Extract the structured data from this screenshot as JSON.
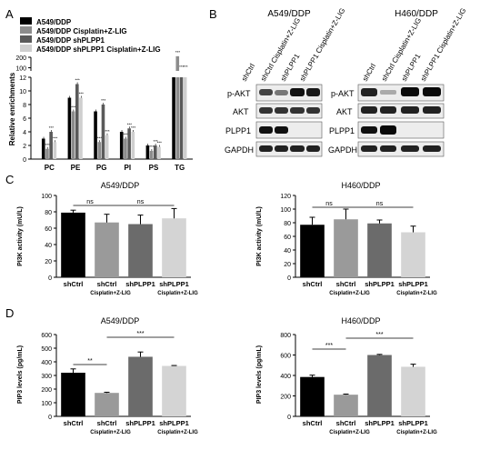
{
  "panels": {
    "A": "A",
    "B": "B",
    "C": "C",
    "D": "D"
  },
  "panelA": {
    "legend": [
      "A549/DDP",
      "A549/DDP Cisplatin+Z-LIG",
      "A549/DDP shPLPP1",
      "A549/DDP shPLPP1 Cisplatin+Z-LIG"
    ],
    "colors": [
      "#000000",
      "#8c8c8c",
      "#5a5a5a",
      "#cfcfcf"
    ],
    "ylabel": "Relative enrichments",
    "yticks_low": [
      "0",
      "2",
      "4",
      "6",
      "8",
      "10",
      "12"
    ],
    "yticks_high": [
      "100",
      "200"
    ],
    "categories": [
      "PC",
      "PE",
      "PG",
      "PI",
      "PS",
      "TG"
    ],
    "sig": "***"
  },
  "panelB": {
    "a549": {
      "title": "A549/DDP",
      "lanes": [
        "shCtrl",
        "shCtrl Cisplatin+Z-LIG",
        "shPLPP1",
        "shPLPP1 Cisplatin+Z-LIG"
      ],
      "rows": [
        "p-AKT",
        "AKT",
        "PLPP1",
        "GAPDH"
      ]
    },
    "h460": {
      "title": "H460/DDP",
      "lanes": [
        "shCtrl",
        "shCtrl Cisplatin+Z-LIG",
        "shPLPP1",
        "shPLPP1 Cisplatin+Z-LIG"
      ],
      "rows": [
        "p-AKT",
        "AKT",
        "PLPP1",
        "GAPDH"
      ]
    }
  },
  "chart_data": [
    {
      "type": "bar",
      "panel": "A",
      "categories": [
        "PC",
        "PE",
        "PG",
        "PI",
        "PS",
        "TG"
      ],
      "ylabel": "Relative enrichments",
      "broken_axis": {
        "lower": [
          0,
          12
        ],
        "upper": [
          70,
          200
        ]
      },
      "series": [
        {
          "name": "A549/DDP",
          "values": [
            3.0,
            9.0,
            7.0,
            4.0,
            2.0,
            70
          ]
        },
        {
          "name": "A549/DDP Cisplatin+Z-LIG",
          "values": [
            1.5,
            7.0,
            2.5,
            3.0,
            1.2,
            210
          ]
        },
        {
          "name": "A549/DDP shPLPP1",
          "values": [
            4.0,
            11.0,
            8.0,
            4.5,
            2.0,
            70
          ]
        },
        {
          "name": "A549/DDP shPLPP1 Cisplatin+Z-LIG",
          "values": [
            2.5,
            9.0,
            3.5,
            4.0,
            1.8,
            70
          ]
        }
      ]
    },
    {
      "type": "bar",
      "panel": "C-left",
      "title": "A549/DDP",
      "ylabel": "PI3K activity (mU/L)",
      "ylim": [
        0,
        100
      ],
      "yticks": [
        "0",
        "20",
        "40",
        "60",
        "80",
        "100"
      ],
      "categories": [
        "shCtrl",
        "shCtrl",
        "shPLPP1",
        "shPLPP1"
      ],
      "sublabels": [
        "",
        "Cisplatin+Z-LIG",
        "",
        "Cisplatin+Z-LIG"
      ],
      "values": [
        79,
        67,
        65,
        72
      ],
      "errors": [
        3,
        10,
        11,
        12
      ],
      "colors": [
        "#000000",
        "#9a9a9a",
        "#6b6b6b",
        "#d4d4d4"
      ],
      "annotations": [
        "ns",
        "ns"
      ]
    },
    {
      "type": "bar",
      "panel": "C-right",
      "title": "H460/DDP",
      "ylabel": "PI3K activity (mU/L)",
      "ylim": [
        0,
        120
      ],
      "yticks": [
        "0",
        "20",
        "40",
        "60",
        "80",
        "100",
        "120"
      ],
      "categories": [
        "shCtrl",
        "shCtrl",
        "shPLPP1",
        "shPLPP1"
      ],
      "sublabels": [
        "",
        "Cisplatin+Z-LIG",
        "",
        "Cisplatin+Z-LIG"
      ],
      "values": [
        77,
        85,
        79,
        66
      ],
      "errors": [
        11,
        15,
        5,
        9
      ],
      "colors": [
        "#000000",
        "#9a9a9a",
        "#6b6b6b",
        "#d4d4d4"
      ],
      "annotations": [
        "ns",
        "ns"
      ]
    },
    {
      "type": "bar",
      "panel": "D-left",
      "title": "A549/DDP",
      "ylabel": "PIP3 levels (pg/mL)",
      "ylim": [
        0,
        600
      ],
      "yticks": [
        "0",
        "100",
        "200",
        "300",
        "400",
        "500",
        "600"
      ],
      "categories": [
        "shCtrl",
        "shCtrl",
        "shPLPP1",
        "shPLPP1"
      ],
      "sublabels": [
        "",
        "Cisplatin+Z-LIG",
        "",
        "Cisplatin+Z-LIG"
      ],
      "values": [
        320,
        172,
        437,
        370
      ],
      "errors": [
        28,
        5,
        35,
        3
      ],
      "colors": [
        "#000000",
        "#9a9a9a",
        "#6b6b6b",
        "#d4d4d4"
      ],
      "annotations": [
        "**",
        "***"
      ]
    },
    {
      "type": "bar",
      "panel": "D-right",
      "title": "H460/DDP",
      "ylabel": "PIP3 levels (pg/mL)",
      "ylim": [
        0,
        800
      ],
      "yticks": [
        "0",
        "200",
        "400",
        "600",
        "800"
      ],
      "categories": [
        "shCtrl",
        "shCtrl",
        "shPLPP1",
        "shPLPP1"
      ],
      "sublabels": [
        "",
        "Cisplatin+Z-LIG",
        "",
        "Cisplatin+Z-LIG"
      ],
      "values": [
        385,
        212,
        600,
        485
      ],
      "errors": [
        18,
        6,
        6,
        25
      ],
      "colors": [
        "#000000",
        "#9a9a9a",
        "#6b6b6b",
        "#d4d4d4"
      ],
      "annotations": [
        "***",
        "***"
      ]
    }
  ]
}
